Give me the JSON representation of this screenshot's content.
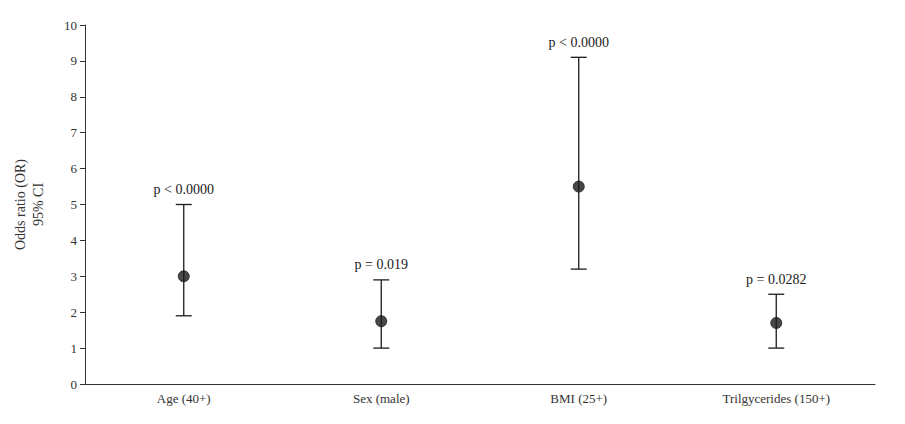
{
  "chart_data": {
    "type": "scatter",
    "categories": [
      "Age (40+)",
      "Sex (male)",
      "BMI (25+)",
      "Trilgycerides (150+)"
    ],
    "values": [
      3.0,
      1.75,
      5.5,
      1.7
    ],
    "ci_lower": [
      1.9,
      1.0,
      3.2,
      1.0
    ],
    "ci_upper": [
      5.0,
      2.9,
      9.1,
      2.5
    ],
    "annotations": [
      "p < 0.0000",
      "p = 0.019",
      "p < 0.0000",
      "p = 0.0282"
    ],
    "ylabel": "Odds ratio (OR)\n95% CI",
    "ylim": [
      0,
      10
    ],
    "yticks": [
      0,
      1,
      2,
      3,
      4,
      5,
      6,
      7,
      8,
      9,
      10
    ],
    "grid": false,
    "marker": "circle",
    "color": "#1a1a1a"
  }
}
